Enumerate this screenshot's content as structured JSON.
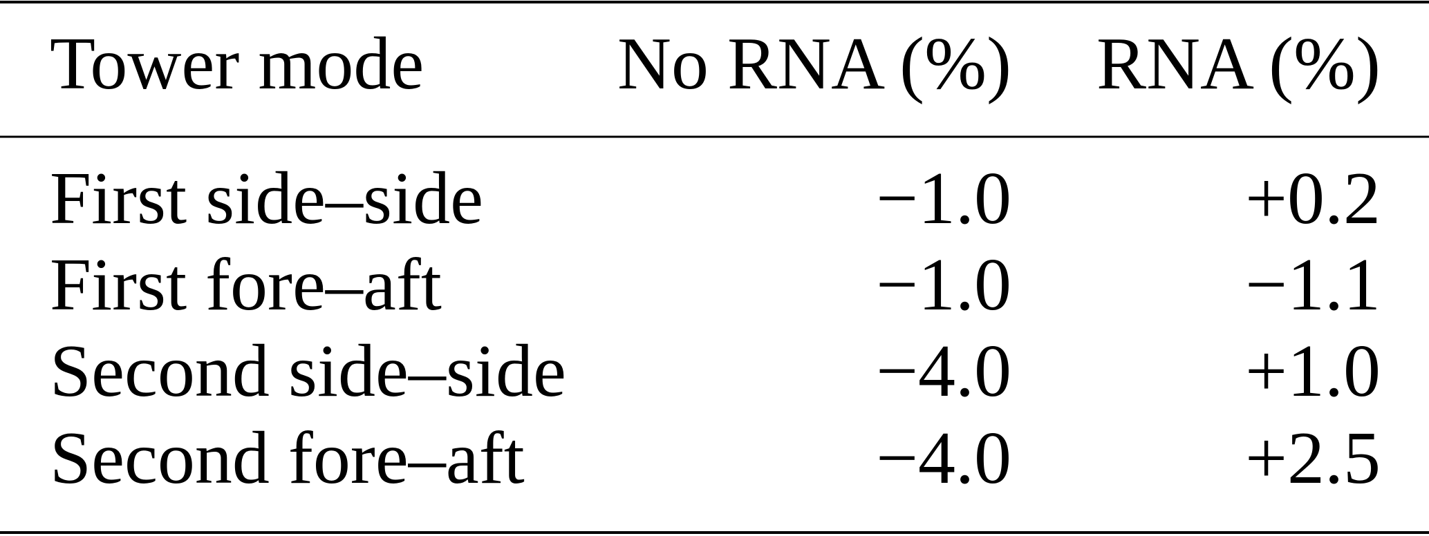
{
  "table": {
    "header": [
      "Tower mode",
      "No RNA (%)",
      "RNA (%)"
    ],
    "rows": [
      [
        "First side–side",
        "−1.0",
        "+0.2"
      ],
      [
        "First fore–aft",
        "−1.0",
        "−1.1"
      ],
      [
        "Second side–side",
        "−4.0",
        "+1.0"
      ],
      [
        "Second fore–aft",
        "−4.0",
        "+2.5"
      ]
    ]
  }
}
